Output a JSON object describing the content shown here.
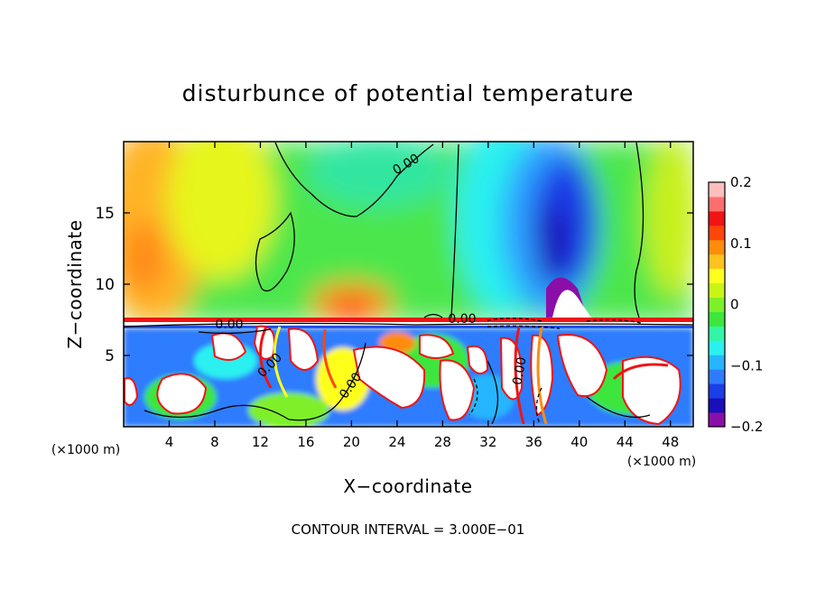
{
  "chart_data": {
    "type": "heatmap",
    "title": "disturbunce of potential temperature",
    "xlabel": "X−coordinate",
    "ylabel": "Z−coordinate",
    "x_unit_left": "(×1000 m)",
    "x_unit_right": "(×1000 m)",
    "xlim": [
      0,
      50
    ],
    "ylim": [
      0,
      20
    ],
    "x_ticks": [
      4,
      8,
      12,
      16,
      20,
      24,
      28,
      32,
      36,
      40,
      44,
      48
    ],
    "x_tick_labels": [
      "4",
      "8",
      "12",
      "16",
      "20",
      "24",
      "28",
      "32",
      "36",
      "40",
      "44",
      "48"
    ],
    "y_ticks": [
      5,
      10,
      15
    ],
    "y_tick_labels": [
      "5",
      "10",
      "15"
    ],
    "colorbar": {
      "range": [
        -0.2,
        0.2
      ],
      "ticks": [
        0.2,
        0.1,
        0,
        -0.1,
        -0.2
      ],
      "tick_labels": [
        "0.2",
        "0.1",
        "0",
        "−0.1",
        "−0.2"
      ],
      "colors": [
        "#8a0fa8",
        "#1a0fb8",
        "#1c3ee6",
        "#2f7bff",
        "#27b5ff",
        "#2af0f0",
        "#33f5a8",
        "#3ce63c",
        "#7ef02a",
        "#c8f515",
        "#ffff1e",
        "#ffc21e",
        "#ff8c0a",
        "#ff460a",
        "#f01414",
        "#ff6e6e",
        "#ffbebe"
      ]
    },
    "contour_labels": [
      "0.00",
      "0.00",
      "0.00",
      "0.00",
      "0.00",
      "0.00"
    ],
    "contour_interval_text": "CONTOUR INTERVAL = 3.000E−01"
  }
}
